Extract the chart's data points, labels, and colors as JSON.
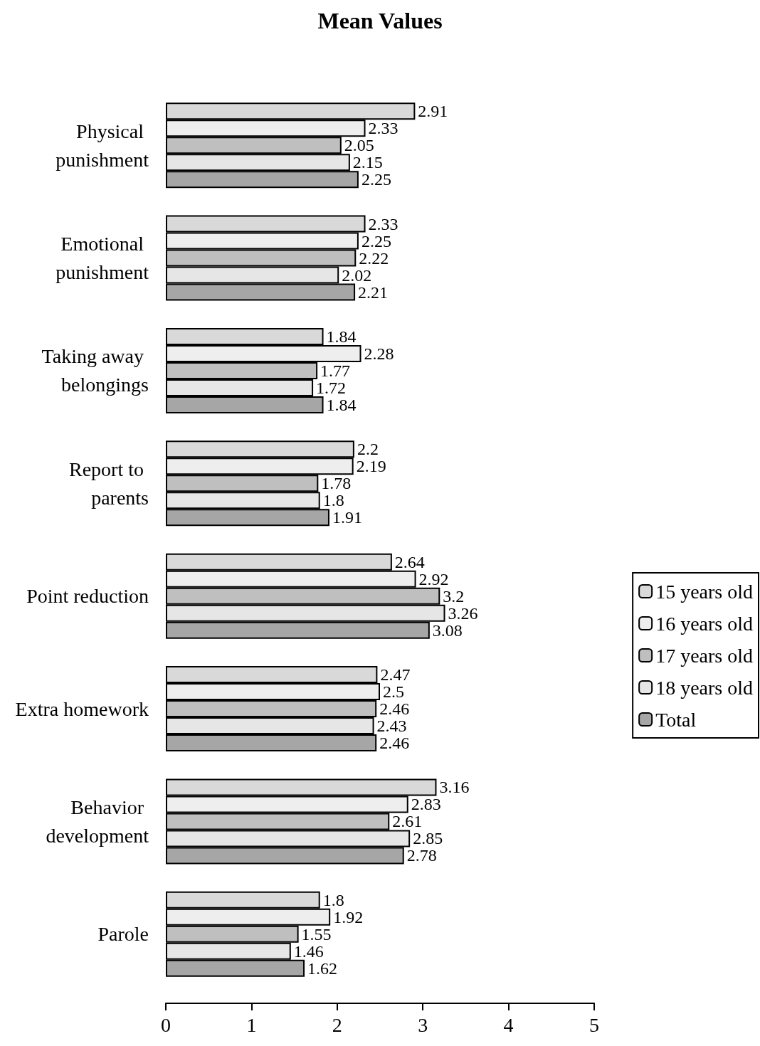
{
  "chart_data": {
    "type": "bar",
    "orientation": "horizontal",
    "title": "Mean Values",
    "categories": [
      "Physical punishment",
      "Emotional punishment",
      "Taking away belongings",
      "Report to parents",
      "Point reduction",
      "Extra homework",
      "Behavior development",
      "Parole"
    ],
    "series": [
      {
        "name": "15 years old",
        "color": "#d9d9d9",
        "values": [
          2.91,
          2.33,
          1.84,
          2.2,
          2.64,
          2.47,
          3.16,
          1.8
        ]
      },
      {
        "name": "16 years old",
        "color": "#eeeeee",
        "values": [
          2.33,
          2.25,
          2.28,
          2.19,
          2.92,
          2.5,
          2.83,
          1.92
        ]
      },
      {
        "name": "17 years old",
        "color": "#bfbfbf",
        "values": [
          2.05,
          2.22,
          1.77,
          1.78,
          3.2,
          2.46,
          2.61,
          1.55
        ]
      },
      {
        "name": "18 years old",
        "color": "#e6e6e6",
        "values": [
          2.15,
          2.02,
          1.72,
          1.8,
          3.26,
          2.43,
          2.85,
          1.46
        ]
      },
      {
        "name": "Total",
        "color": "#a6a6a6",
        "values": [
          2.25,
          2.21,
          1.84,
          1.91,
          3.08,
          2.46,
          2.78,
          1.62
        ]
      }
    ],
    "xlim": [
      0,
      5
    ],
    "xticks": [
      0,
      1,
      2,
      3,
      4,
      5
    ],
    "data_labels": true,
    "grid": false,
    "legend": "right"
  }
}
